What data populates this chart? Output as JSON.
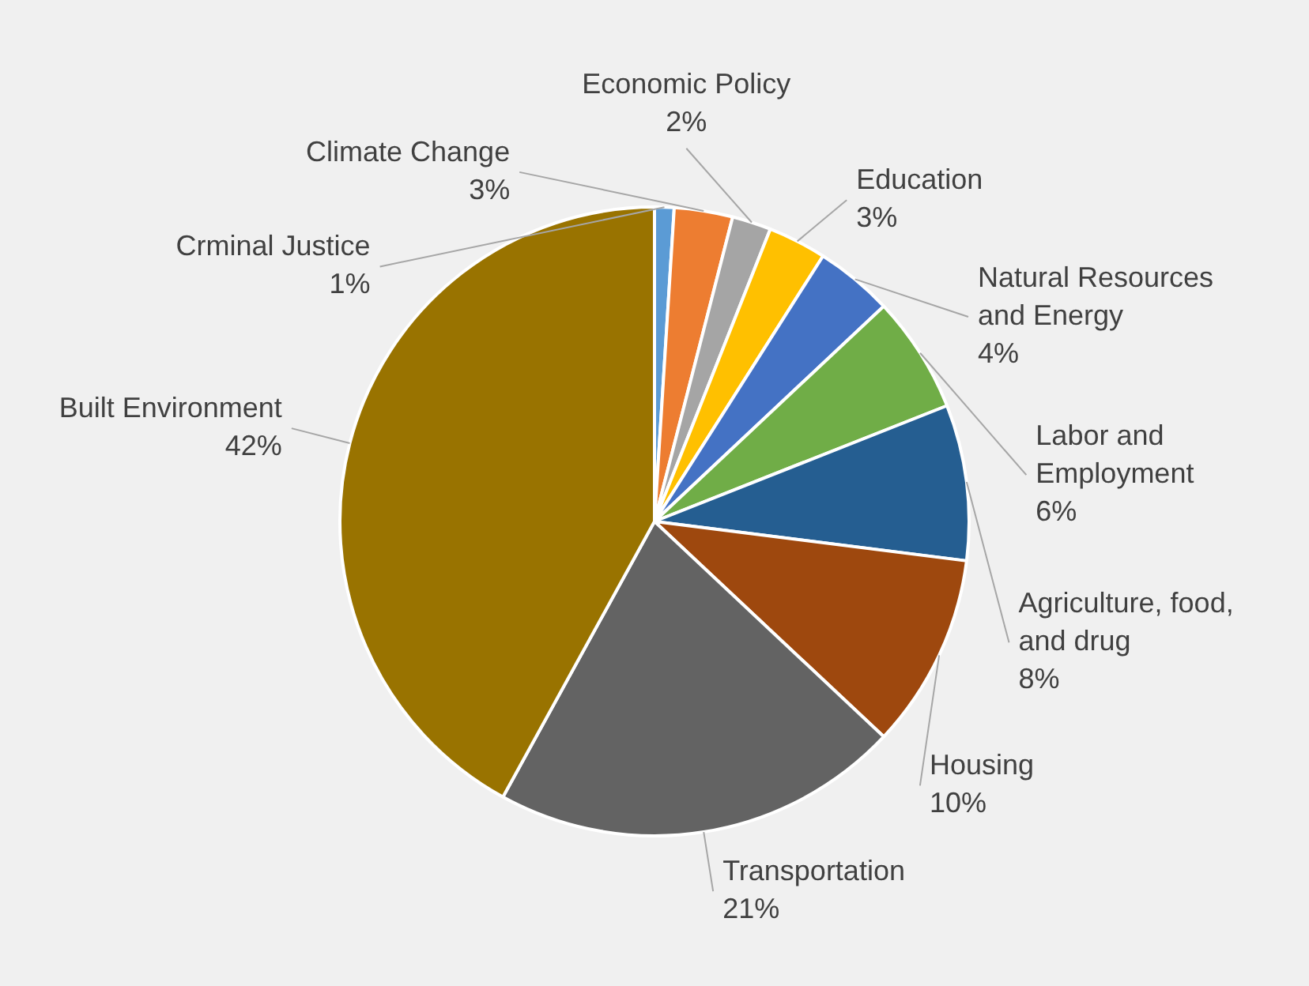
{
  "chart_data": {
    "type": "pie",
    "categories": [
      "Crminal Justice",
      "Climate Change",
      "Economic Policy",
      "Education",
      "Natural Resources and Energy",
      "Labor and Employment",
      "Agriculture, food, and drug",
      "Housing",
      "Transportation",
      "Built Environment"
    ],
    "values": [
      1,
      3,
      2,
      3,
      4,
      6,
      8,
      10,
      21,
      42
    ],
    "value_labels": [
      "1%",
      "3%",
      "2%",
      "3%",
      "4%",
      "6%",
      "8%",
      "10%",
      "21%",
      "42%"
    ],
    "colors": [
      "#5b9bd5",
      "#ed7d31",
      "#a5a5a5",
      "#ffc000",
      "#4472c4",
      "#70ad47",
      "#255e91",
      "#9e480e",
      "#636363",
      "#997300"
    ]
  }
}
